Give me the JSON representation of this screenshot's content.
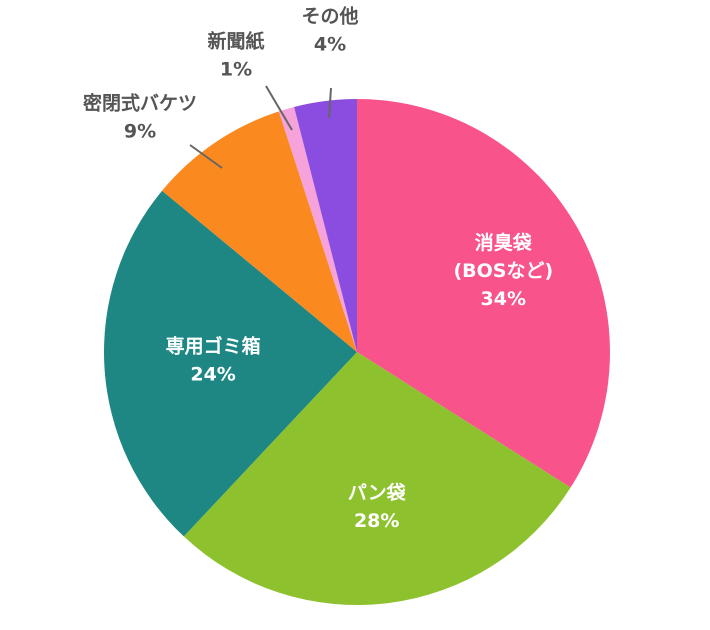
{
  "chart_data": {
    "type": "pie",
    "slices": [
      {
        "label_lines": [
          "消臭袋",
          "(BOSなど)"
        ],
        "value_text": "34%",
        "value": 34,
        "color": "#F8538A",
        "label_position": "inside"
      },
      {
        "label_lines": [
          "パン袋"
        ],
        "value_text": "28%",
        "value": 28,
        "color": "#8DC12E",
        "label_position": "inside"
      },
      {
        "label_lines": [
          "専用ゴミ箱"
        ],
        "value_text": "24%",
        "value": 24,
        "color": "#1E8783",
        "label_position": "inside"
      },
      {
        "label_lines": [
          "密閉式バケツ"
        ],
        "value_text": "9%",
        "value": 9,
        "color": "#FA8A1F",
        "label_position": "outside"
      },
      {
        "label_lines": [
          "新聞紙"
        ],
        "value_text": "1%",
        "value": 1,
        "color": "#F6A3DC",
        "label_position": "outside"
      },
      {
        "label_lines": [
          "その他"
        ],
        "value_text": "4%",
        "value": 4,
        "color": "#8B4DE0",
        "label_position": "outside"
      }
    ],
    "start": "12 o'clock",
    "direction": "clockwise"
  }
}
